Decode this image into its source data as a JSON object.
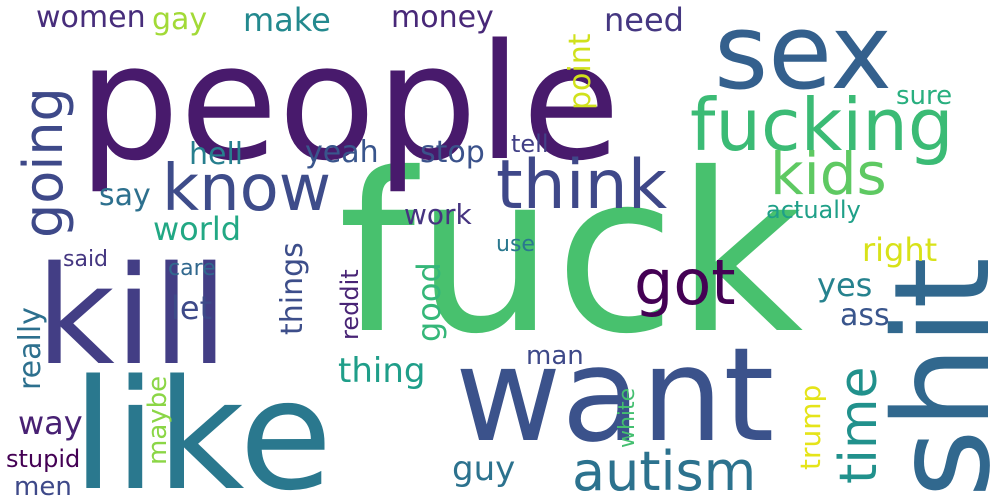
{
  "words": [
    {
      "text": "fuck",
      "color": "#48c16e"
    },
    {
      "text": "people",
      "color": "#481a6c"
    },
    {
      "text": "like",
      "color": "#2a788e"
    },
    {
      "text": "kill",
      "color": "#433e85"
    },
    {
      "text": "want",
      "color": "#3b528b"
    },
    {
      "text": "shit",
      "color": "#31688e"
    },
    {
      "text": "sex",
      "color": "#34608d"
    },
    {
      "text": "fucking",
      "color": "#3bbb75"
    },
    {
      "text": "think",
      "color": "#3f4889"
    },
    {
      "text": "know",
      "color": "#3e4c8a"
    },
    {
      "text": "autism",
      "color": "#2c728e"
    },
    {
      "text": "got",
      "color": "#440154"
    },
    {
      "text": "kids",
      "color": "#5ec962"
    },
    {
      "text": "going",
      "color": "#3e4989"
    },
    {
      "text": "time",
      "color": "#21918c"
    },
    {
      "text": "women",
      "color": "#472d7b"
    },
    {
      "text": "gay",
      "color": "#a2da37"
    },
    {
      "text": "make",
      "color": "#23898e"
    },
    {
      "text": "money",
      "color": "#482878"
    },
    {
      "text": "point",
      "color": "#d0e11c"
    },
    {
      "text": "need",
      "color": "#453781"
    },
    {
      "text": "sure",
      "color": "#29af7f"
    },
    {
      "text": "hell",
      "color": "#277f8e"
    },
    {
      "text": "yeah",
      "color": "#39558c"
    },
    {
      "text": "stop",
      "color": "#3b528b"
    },
    {
      "text": "tell",
      "color": "#424086"
    },
    {
      "text": "say",
      "color": "#2d708e"
    },
    {
      "text": "world",
      "color": "#22a884"
    },
    {
      "text": "work",
      "color": "#463480"
    },
    {
      "text": "actually",
      "color": "#1fa088"
    },
    {
      "text": "right",
      "color": "#d8e219"
    },
    {
      "text": "things",
      "color": "#3d4e8a"
    },
    {
      "text": "use",
      "color": "#2a788e"
    },
    {
      "text": "said",
      "color": "#453781"
    },
    {
      "text": "care",
      "color": "#31688e"
    },
    {
      "text": "really",
      "color": "#2d708e"
    },
    {
      "text": "let",
      "color": "#3e4a89"
    },
    {
      "text": "reddit",
      "color": "#482475"
    },
    {
      "text": "good",
      "color": "#35b779"
    },
    {
      "text": "yes",
      "color": "#26828e"
    },
    {
      "text": "ass",
      "color": "#39558c"
    },
    {
      "text": "thing",
      "color": "#1f9e89"
    },
    {
      "text": "man",
      "color": "#3e4989"
    },
    {
      "text": "way",
      "color": "#482173"
    },
    {
      "text": "maybe",
      "color": "#8bd646"
    },
    {
      "text": "white",
      "color": "#44bf70"
    },
    {
      "text": "trump",
      "color": "#e5e419"
    },
    {
      "text": "guy",
      "color": "#2c728e"
    },
    {
      "text": "stupid",
      "color": "#440154"
    },
    {
      "text": "men",
      "color": "#3e4989"
    }
  ]
}
